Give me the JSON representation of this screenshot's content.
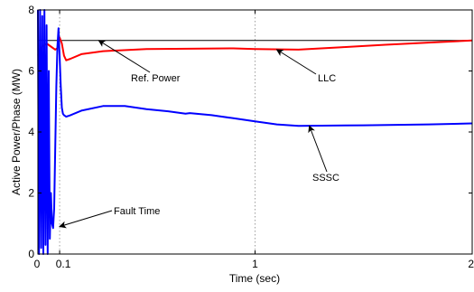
{
  "chart_data": {
    "type": "line",
    "title": "",
    "xlabel": "Time (sec)",
    "ylabel": "Active Power/Phase (MW)",
    "xlim": [
      0,
      2
    ],
    "ylim": [
      0,
      8
    ],
    "x_ticks": [
      0,
      0.1,
      1,
      2
    ],
    "x_tick_labels": [
      "0",
      "0.1",
      "1",
      "2"
    ],
    "y_ticks": [
      0,
      2,
      4,
      6,
      8
    ],
    "y_tick_labels": [
      "0",
      "2",
      "4",
      "6",
      "8"
    ],
    "grid": "dotted vertical at x = 0.1 and x = 1",
    "series": [
      {
        "name": "Ref. Power",
        "color": "#000000",
        "x": [
          0,
          2
        ],
        "y": [
          7.0,
          7.0
        ]
      },
      {
        "name": "LLC",
        "color": "#ff0000",
        "x": [
          0,
          0.01,
          0.02,
          0.04,
          0.06,
          0.08,
          0.09,
          0.1,
          0.11,
          0.12,
          0.13,
          0.15,
          0.2,
          0.3,
          0.5,
          0.7,
          0.9,
          1.0,
          1.2,
          1.4,
          1.6,
          1.8,
          2.0
        ],
        "y": [
          6.5,
          6.6,
          6.8,
          6.9,
          6.8,
          6.7,
          6.75,
          7.1,
          6.9,
          6.5,
          6.35,
          6.4,
          6.55,
          6.65,
          6.72,
          6.73,
          6.74,
          6.72,
          6.7,
          6.78,
          6.86,
          6.93,
          7.0
        ]
      },
      {
        "name": "SSSC",
        "color": "#0000ff",
        "x": [
          0,
          0.005,
          0.01,
          0.015,
          0.02,
          0.025,
          0.03,
          0.035,
          0.04,
          0.045,
          0.05,
          0.055,
          0.06,
          0.065,
          0.07,
          0.075,
          0.08,
          0.085,
          0.09,
          0.095,
          0.1,
          0.105,
          0.11,
          0.115,
          0.12,
          0.13,
          0.15,
          0.2,
          0.3,
          0.4,
          0.5,
          0.6,
          0.68,
          0.7,
          0.8,
          0.9,
          1.0,
          1.1,
          1.2,
          1.5,
          1.8,
          2.0
        ],
        "y": [
          8,
          0,
          8,
          0.2,
          7.8,
          0,
          8,
          0.3,
          7.5,
          0,
          6,
          0.5,
          2,
          1.0,
          0.85,
          1.5,
          3.5,
          5.5,
          6.8,
          7.4,
          6.5,
          5.5,
          4.8,
          4.6,
          4.55,
          4.5,
          4.55,
          4.7,
          4.85,
          4.85,
          4.75,
          4.68,
          4.6,
          4.62,
          4.55,
          4.45,
          4.35,
          4.25,
          4.2,
          4.22,
          4.25,
          4.28
        ]
      }
    ],
    "annotations": [
      {
        "text": "Ref. Power",
        "points_to": [
          0.28,
          7.0
        ]
      },
      {
        "text": "LLC",
        "points_to": [
          1.1,
          6.7
        ]
      },
      {
        "text": "SSSC",
        "points_to": [
          1.25,
          4.2
        ]
      },
      {
        "text": "Fault Time",
        "points_to": [
          0.1,
          0.9
        ]
      }
    ]
  }
}
